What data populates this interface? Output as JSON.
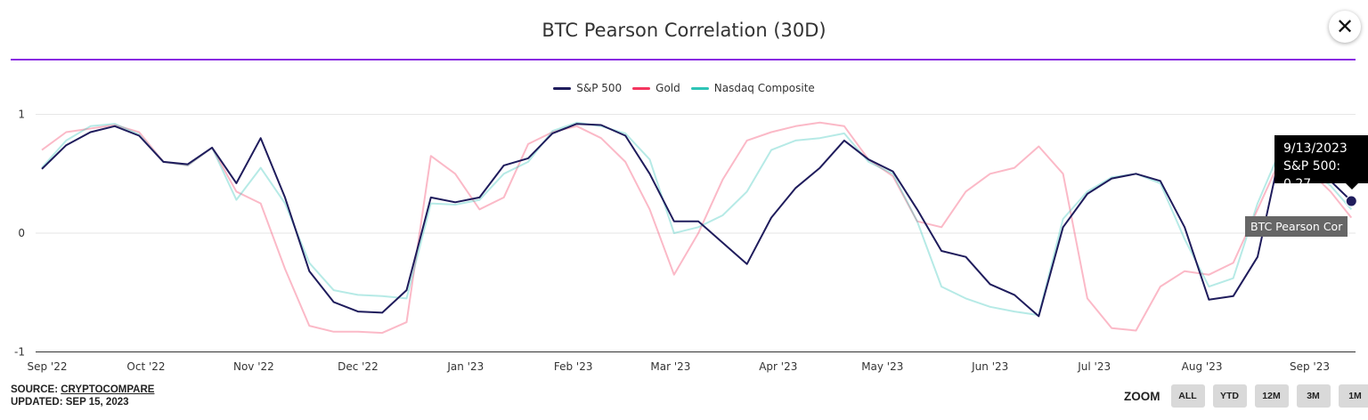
{
  "header": {
    "title": "BTC Pearson Correlation (30D)",
    "close_icon": "close-x-icon"
  },
  "footer": {
    "source_label": "SOURCE:",
    "source_link": "CRYPTOCOMPARE",
    "updated": "UPDATED: SEP 15, 2023"
  },
  "zoom": {
    "label": "ZOOM",
    "buttons": [
      "ALL",
      "YTD",
      "12M",
      "3M",
      "1M"
    ]
  },
  "tooltip": {
    "date": "9/13/2023",
    "text": "S&P 500: 0.27",
    "series_label": "BTC Pearson Cor"
  },
  "chart_data": {
    "type": "line",
    "title": "BTC Pearson Correlation (30D)",
    "legend_position": "top-center",
    "grid": true,
    "ylim": [
      -1,
      1
    ],
    "yticks": [
      "1",
      "0",
      "-1"
    ],
    "xticks": [
      "Sep '22",
      "Oct '22",
      "Nov '22",
      "Dec '22",
      "Jan '23",
      "Feb '23",
      "Mar '23",
      "Apr '23",
      "May '23",
      "Jun '23",
      "Jul '23",
      "Aug '23",
      "Sep '23"
    ],
    "xtick_dates": [
      "2022-09-01",
      "2022-10-01",
      "2022-11-01",
      "2022-12-01",
      "2023-01-01",
      "2023-02-01",
      "2023-03-01",
      "2023-04-01",
      "2023-05-01",
      "2023-06-01",
      "2023-07-01",
      "2023-08-01",
      "2023-09-01"
    ],
    "x": [
      "2022-09-01",
      "2022-09-08",
      "2022-09-15",
      "2022-09-22",
      "2022-09-29",
      "2022-10-06",
      "2022-10-13",
      "2022-10-20",
      "2022-10-27",
      "2022-11-03",
      "2022-11-10",
      "2022-11-17",
      "2022-11-24",
      "2022-12-01",
      "2022-12-08",
      "2022-12-15",
      "2022-12-22",
      "2022-12-29",
      "2023-01-05",
      "2023-01-12",
      "2023-01-19",
      "2023-01-26",
      "2023-02-02",
      "2023-02-09",
      "2023-02-16",
      "2023-02-23",
      "2023-03-02",
      "2023-03-09",
      "2023-03-16",
      "2023-03-23",
      "2023-03-30",
      "2023-04-06",
      "2023-04-13",
      "2023-04-20",
      "2023-04-27",
      "2023-05-04",
      "2023-05-11",
      "2023-05-18",
      "2023-05-25",
      "2023-06-01",
      "2023-06-08",
      "2023-06-15",
      "2023-06-22",
      "2023-06-29",
      "2023-07-06",
      "2023-07-13",
      "2023-07-20",
      "2023-07-27",
      "2023-08-03",
      "2023-08-10",
      "2023-08-17",
      "2023-08-24",
      "2023-08-31",
      "2023-09-07",
      "2023-09-13"
    ],
    "series": [
      {
        "name": "S&P 500",
        "color": "#1f1c5c",
        "values": [
          0.54,
          0.74,
          0.85,
          0.9,
          0.82,
          0.6,
          0.58,
          0.72,
          0.42,
          0.8,
          0.3,
          -0.32,
          -0.58,
          -0.66,
          -0.67,
          -0.48,
          0.3,
          0.26,
          0.3,
          0.57,
          0.63,
          0.84,
          0.92,
          0.91,
          0.82,
          0.5,
          0.1,
          0.1,
          -0.08,
          -0.26,
          0.13,
          0.38,
          0.55,
          0.78,
          0.62,
          0.52,
          0.2,
          -0.15,
          -0.2,
          -0.43,
          -0.52,
          -0.7,
          0.05,
          0.33,
          0.46,
          0.5,
          0.44,
          0.05,
          -0.56,
          -0.53,
          -0.2,
          0.74,
          0.55,
          0.44,
          0.27
        ]
      },
      {
        "name": "Gold",
        "color": "#f4365f",
        "values": [
          0.7,
          0.85,
          0.88,
          0.91,
          0.85,
          0.6,
          0.57,
          0.72,
          0.35,
          0.25,
          -0.3,
          -0.78,
          -0.83,
          -0.83,
          -0.84,
          -0.75,
          0.65,
          0.5,
          0.2,
          0.3,
          0.75,
          0.85,
          0.9,
          0.8,
          0.6,
          0.2,
          -0.35,
          0.0,
          0.45,
          0.78,
          0.85,
          0.9,
          0.93,
          0.9,
          0.62,
          0.48,
          0.1,
          0.05,
          0.35,
          0.5,
          0.55,
          0.73,
          0.5,
          -0.55,
          -0.8,
          -0.82,
          -0.45,
          -0.32,
          -0.35,
          -0.25,
          0.2,
          0.65,
          0.55,
          0.35,
          0.13
        ]
      },
      {
        "name": "Nasdaq Composite",
        "color": "#2ec4b6",
        "values": [
          0.55,
          0.78,
          0.9,
          0.92,
          0.83,
          0.6,
          0.57,
          0.72,
          0.28,
          0.55,
          0.25,
          -0.25,
          -0.48,
          -0.52,
          -0.53,
          -0.55,
          0.25,
          0.24,
          0.28,
          0.5,
          0.6,
          0.86,
          0.93,
          0.9,
          0.84,
          0.62,
          0.0,
          0.05,
          0.15,
          0.35,
          0.7,
          0.78,
          0.8,
          0.84,
          0.6,
          0.5,
          0.1,
          -0.45,
          -0.55,
          -0.62,
          -0.66,
          -0.69,
          0.12,
          0.35,
          0.47,
          0.5,
          0.42,
          -0.05,
          -0.45,
          -0.38,
          0.25,
          0.73,
          0.55,
          0.4,
          0.2
        ]
      }
    ]
  }
}
